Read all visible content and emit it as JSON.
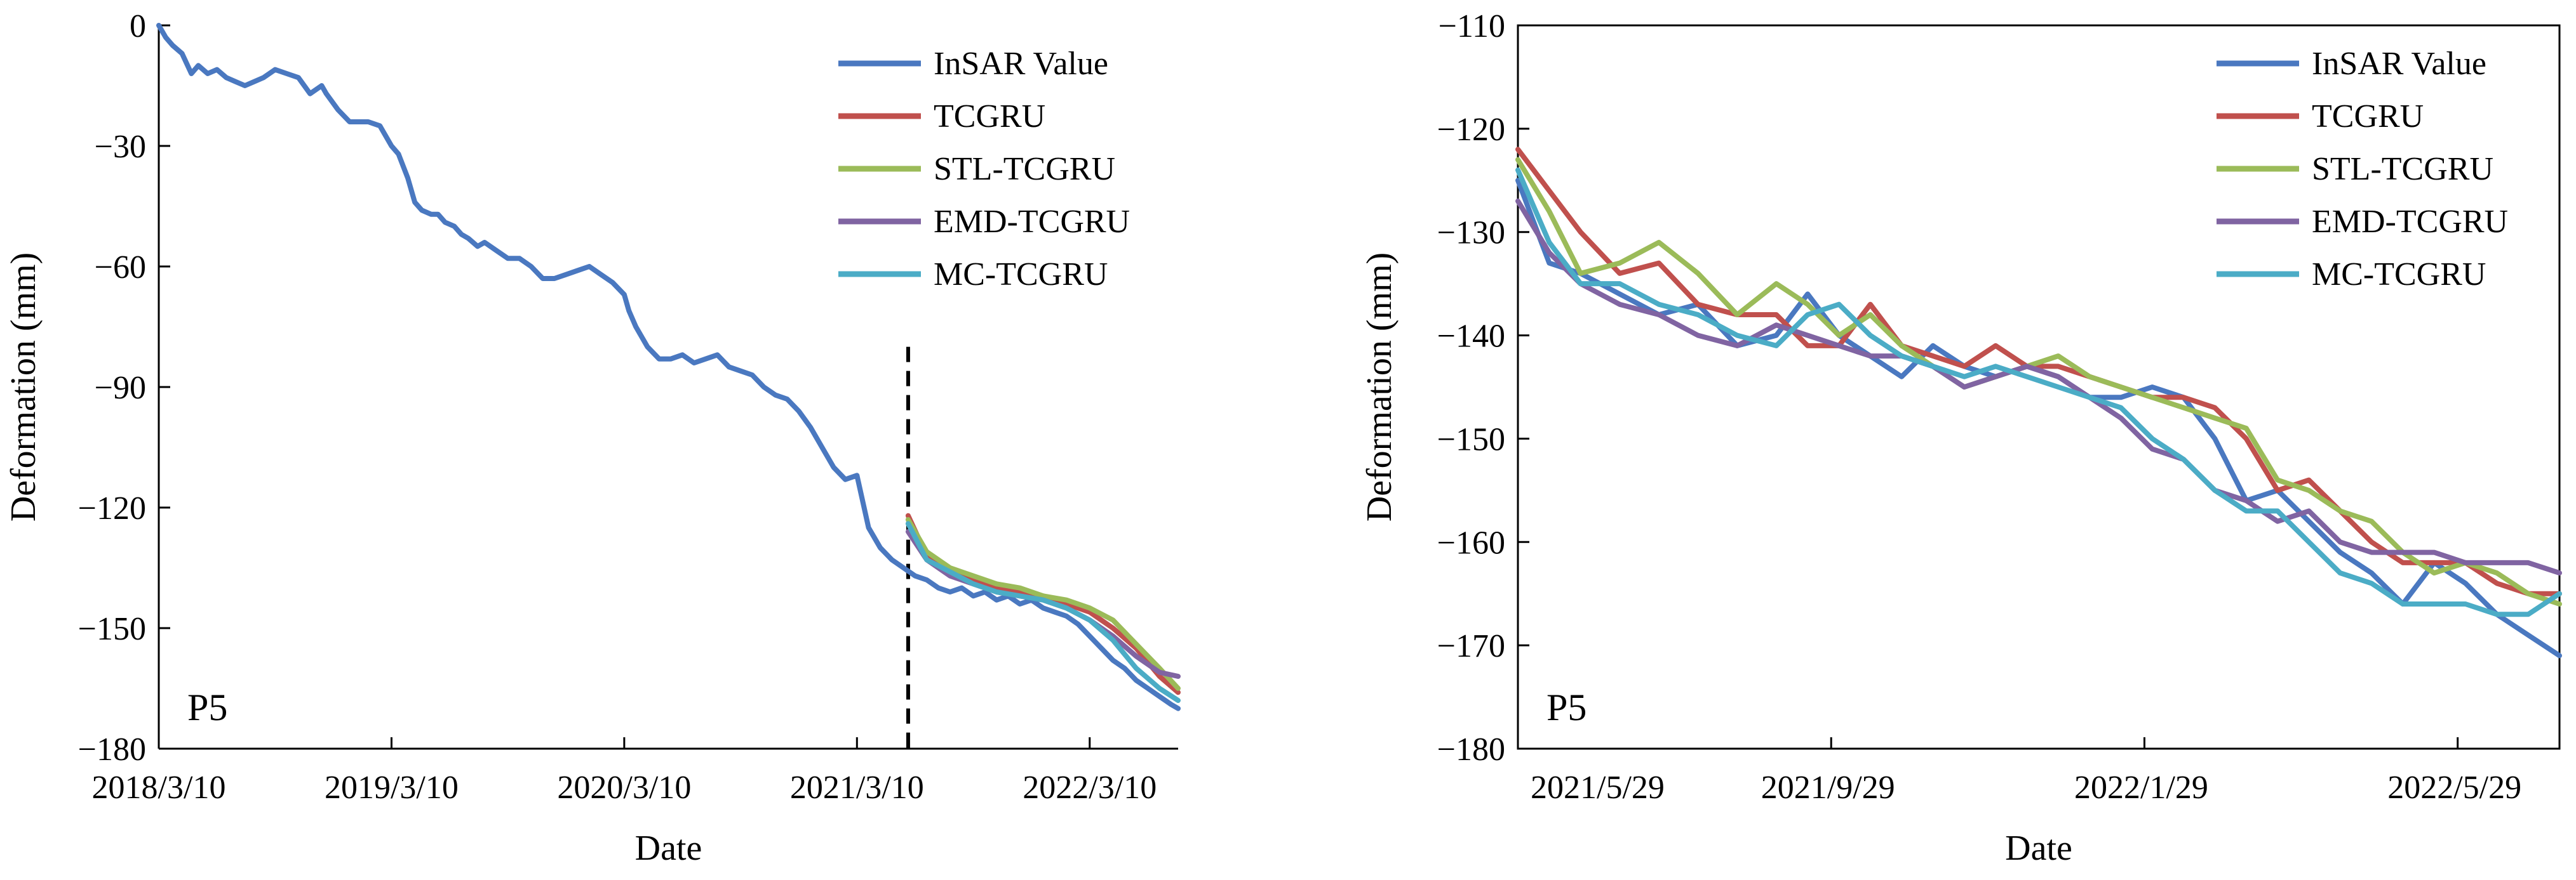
{
  "chart_data": [
    {
      "type": "line",
      "panel": "left",
      "xlabel": "Date",
      "ylabel": "Deformation (mm)",
      "ylim": [
        -180,
        0
      ],
      "yticks": [
        0,
        -30,
        -60,
        -90,
        -120,
        -150,
        -180
      ],
      "ytick_labels": [
        "0",
        "−30",
        "−60",
        "−90",
        "−120",
        "−150",
        "−180"
      ],
      "xlim": [
        0,
        4.38
      ],
      "xticks": [
        0,
        1,
        2,
        3,
        4
      ],
      "xtick_labels": [
        "2018/3/10",
        "2019/3/10",
        "2020/3/10",
        "2021/3/10",
        "2022/3/10"
      ],
      "annotation": "P5",
      "split_line_x": 3.22,
      "grid": false,
      "legend": "top-right",
      "series": [
        {
          "name": "InSAR Value",
          "color": "#4a78c0",
          "x": [
            0,
            0.03,
            0.06,
            0.1,
            0.14,
            0.17,
            0.21,
            0.25,
            0.29,
            0.33,
            0.37,
            0.41,
            0.45,
            0.5,
            0.55,
            0.6,
            0.65,
            0.7,
            0.72,
            0.77,
            0.82,
            0.87,
            0.9,
            0.95,
            1.0,
            1.03,
            1.07,
            1.1,
            1.13,
            1.17,
            1.2,
            1.23,
            1.27,
            1.3,
            1.33,
            1.37,
            1.4,
            1.45,
            1.5,
            1.55,
            1.6,
            1.65,
            1.7,
            1.75,
            1.8,
            1.85,
            1.9,
            1.95,
            2.0,
            2.02,
            2.05,
            2.1,
            2.15,
            2.2,
            2.25,
            2.3,
            2.35,
            2.4,
            2.45,
            2.5,
            2.55,
            2.6,
            2.65,
            2.7,
            2.75,
            2.8,
            2.85,
            2.9,
            2.95,
            3.0,
            3.05,
            3.1,
            3.15,
            3.2,
            3.25,
            3.3,
            3.35,
            3.4,
            3.45,
            3.5,
            3.55,
            3.6,
            3.65,
            3.7,
            3.75,
            3.8,
            3.85,
            3.9,
            3.95,
            4.0,
            4.05,
            4.1,
            4.15,
            4.2,
            4.25,
            4.3,
            4.35,
            4.38
          ],
          "y": [
            0,
            -3,
            -5,
            -7,
            -12,
            -10,
            -12,
            -11,
            -13,
            -14,
            -15,
            -14,
            -13,
            -11,
            -12,
            -13,
            -17,
            -15,
            -17,
            -21,
            -24,
            -24,
            -24,
            -25,
            -30,
            -32,
            -38,
            -44,
            -46,
            -47,
            -47,
            -49,
            -50,
            -52,
            -53,
            -55,
            -54,
            -56,
            -58,
            -58,
            -60,
            -63,
            -63,
            -62,
            -61,
            -60,
            -62,
            -64,
            -67,
            -71,
            -75,
            -80,
            -83,
            -83,
            -82,
            -84,
            -83,
            -82,
            -85,
            -86,
            -87,
            -90,
            -92,
            -93,
            -96,
            -100,
            -105,
            -110,
            -113,
            -112,
            -125,
            -130,
            -133,
            -135,
            -137,
            -138,
            -140,
            -141,
            -140,
            -142,
            -141,
            -143,
            -142,
            -144,
            -143,
            -145,
            -146,
            -147,
            -149,
            -152,
            -155,
            -158,
            -160,
            -163,
            -165,
            -167,
            -169,
            -170
          ]
        },
        {
          "name": "TCGRU",
          "color": "#c0504d",
          "x": [
            3.22,
            3.3,
            3.4,
            3.5,
            3.6,
            3.7,
            3.8,
            3.9,
            4.0,
            4.1,
            4.2,
            4.3,
            4.38
          ],
          "y": [
            -122,
            -132,
            -136,
            -138,
            -140,
            -141,
            -142,
            -144,
            -146,
            -150,
            -155,
            -162,
            -166
          ]
        },
        {
          "name": "STL-TCGRU",
          "color": "#9bbb59",
          "x": [
            3.22,
            3.3,
            3.4,
            3.5,
            3.6,
            3.7,
            3.8,
            3.9,
            4.0,
            4.1,
            4.2,
            4.3,
            4.38
          ],
          "y": [
            -123,
            -131,
            -135,
            -137,
            -139,
            -140,
            -142,
            -143,
            -145,
            -148,
            -154,
            -160,
            -165
          ]
        },
        {
          "name": "EMD-TCGRU",
          "color": "#8064a2",
          "x": [
            3.22,
            3.3,
            3.4,
            3.5,
            3.6,
            3.7,
            3.8,
            3.9,
            4.0,
            4.1,
            4.2,
            4.3,
            4.38
          ],
          "y": [
            -126,
            -133,
            -137,
            -139,
            -141,
            -142,
            -143,
            -145,
            -148,
            -152,
            -157,
            -161,
            -162
          ]
        },
        {
          "name": "MC-TCGRU",
          "color": "#4bacc6",
          "x": [
            3.22,
            3.3,
            3.4,
            3.5,
            3.6,
            3.7,
            3.8,
            3.9,
            4.0,
            4.1,
            4.2,
            4.3,
            4.38
          ],
          "y": [
            -124,
            -133,
            -136,
            -139,
            -141,
            -142,
            -143,
            -145,
            -148,
            -153,
            -160,
            -165,
            -168
          ]
        }
      ]
    },
    {
      "type": "line",
      "panel": "right",
      "xlabel": "Date",
      "ylabel": "Deformation (mm)",
      "ylim": [
        -180,
        -110
      ],
      "yticks": [
        -110,
        -120,
        -130,
        -140,
        -150,
        -160,
        -170,
        -180
      ],
      "ytick_labels": [
        "−110",
        "−120",
        "−130",
        "−140",
        "−150",
        "−160",
        "−170",
        "−180"
      ],
      "xlim": [
        0,
        13.3
      ],
      "xticks": [
        0,
        4,
        8,
        12
      ],
      "xtick_labels": [
        "2021/5/29",
        "2021/9/29",
        "2022/1/29",
        "2022/5/29"
      ],
      "annotation": "P5",
      "grid": false,
      "legend": "top-right",
      "series": [
        {
          "name": "InSAR Value",
          "color": "#4a78c0",
          "x": [
            0,
            0.4,
            0.8,
            1.3,
            1.8,
            2.3,
            2.8,
            3.3,
            3.7,
            4.1,
            4.5,
            4.9,
            5.3,
            5.7,
            6.1,
            6.5,
            6.9,
            7.3,
            7.7,
            8.1,
            8.5,
            8.9,
            9.3,
            9.7,
            10.1,
            10.5,
            10.9,
            11.3,
            11.7,
            12.1,
            12.5,
            12.9,
            13.3
          ],
          "y": [
            -125,
            -133,
            -134,
            -136,
            -138,
            -137,
            -141,
            -140,
            -136,
            -140,
            -142,
            -144,
            -141,
            -143,
            -144,
            -143,
            -144,
            -146,
            -146,
            -145,
            -146,
            -150,
            -156,
            -155,
            -158,
            -161,
            -163,
            -166,
            -162,
            -164,
            -167,
            -169,
            -171
          ]
        },
        {
          "name": "TCGRU",
          "color": "#c0504d",
          "x": [
            0,
            0.4,
            0.8,
            1.3,
            1.8,
            2.3,
            2.8,
            3.3,
            3.7,
            4.1,
            4.5,
            4.9,
            5.3,
            5.7,
            6.1,
            6.5,
            6.9,
            7.3,
            7.7,
            8.1,
            8.5,
            8.9,
            9.3,
            9.7,
            10.1,
            10.5,
            10.9,
            11.3,
            11.7,
            12.1,
            12.5,
            12.9,
            13.3
          ],
          "y": [
            -122,
            -126,
            -130,
            -134,
            -133,
            -137,
            -138,
            -138,
            -141,
            -141,
            -137,
            -141,
            -142,
            -143,
            -141,
            -143,
            -143,
            -144,
            -145,
            -146,
            -146,
            -147,
            -150,
            -155,
            -154,
            -157,
            -160,
            -162,
            -162,
            -162,
            -164,
            -165,
            -165
          ]
        },
        {
          "name": "STL-TCGRU",
          "color": "#9bbb59",
          "x": [
            0,
            0.4,
            0.8,
            1.3,
            1.8,
            2.3,
            2.8,
            3.3,
            3.7,
            4.1,
            4.5,
            4.9,
            5.3,
            5.7,
            6.1,
            6.5,
            6.9,
            7.3,
            7.7,
            8.1,
            8.5,
            8.9,
            9.3,
            9.7,
            10.1,
            10.5,
            10.9,
            11.3,
            11.7,
            12.1,
            12.5,
            12.9,
            13.3
          ],
          "y": [
            -123,
            -128,
            -134,
            -133,
            -131,
            -134,
            -138,
            -135,
            -137,
            -140,
            -138,
            -141,
            -143,
            -145,
            -144,
            -143,
            -142,
            -144,
            -145,
            -146,
            -147,
            -148,
            -149,
            -154,
            -155,
            -157,
            -158,
            -161,
            -163,
            -162,
            -163,
            -165,
            -166
          ]
        },
        {
          "name": "EMD-TCGRU",
          "color": "#8064a2",
          "x": [
            0,
            0.4,
            0.8,
            1.3,
            1.8,
            2.3,
            2.8,
            3.3,
            3.7,
            4.1,
            4.5,
            4.9,
            5.3,
            5.7,
            6.1,
            6.5,
            6.9,
            7.3,
            7.7,
            8.1,
            8.5,
            8.9,
            9.3,
            9.7,
            10.1,
            10.5,
            10.9,
            11.3,
            11.7,
            12.1,
            12.5,
            12.9,
            13.3
          ],
          "y": [
            -127,
            -132,
            -135,
            -137,
            -138,
            -140,
            -141,
            -139,
            -140,
            -141,
            -142,
            -142,
            -143,
            -145,
            -144,
            -143,
            -144,
            -146,
            -148,
            -151,
            -152,
            -155,
            -156,
            -158,
            -157,
            -160,
            -161,
            -161,
            -161,
            -162,
            -162,
            -162,
            -163
          ]
        },
        {
          "name": "MC-TCGRU",
          "color": "#4bacc6",
          "x": [
            0,
            0.4,
            0.8,
            1.3,
            1.8,
            2.3,
            2.8,
            3.3,
            3.7,
            4.1,
            4.5,
            4.9,
            5.3,
            5.7,
            6.1,
            6.5,
            6.9,
            7.3,
            7.7,
            8.1,
            8.5,
            8.9,
            9.3,
            9.7,
            10.1,
            10.5,
            10.9,
            11.3,
            11.7,
            12.1,
            12.5,
            12.9,
            13.3
          ],
          "y": [
            -124,
            -131,
            -135,
            -135,
            -137,
            -138,
            -140,
            -141,
            -138,
            -137,
            -140,
            -142,
            -143,
            -144,
            -143,
            -144,
            -145,
            -146,
            -147,
            -150,
            -152,
            -155,
            -157,
            -157,
            -160,
            -163,
            -164,
            -166,
            -166,
            -166,
            -167,
            -167,
            -165
          ]
        }
      ]
    }
  ]
}
